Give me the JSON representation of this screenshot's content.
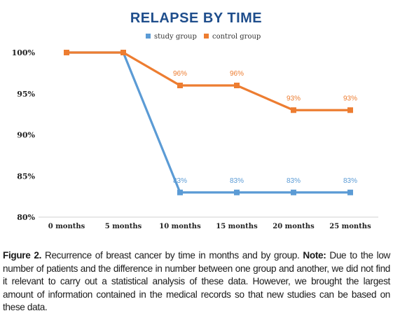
{
  "chart_data": {
    "type": "line",
    "title": "RELAPSE BY TIME",
    "categories": [
      "0 months",
      "5 months",
      "10 months",
      "15 months",
      "20 months",
      "25 months"
    ],
    "ylim": [
      80,
      100
    ],
    "yticks": [
      "80%",
      "85%",
      "90%",
      "95%",
      "100%"
    ],
    "grid": false,
    "legend": "top",
    "series": [
      {
        "name": "study group",
        "color": "#5b9bd5",
        "values": [
          100,
          100,
          83,
          83,
          83,
          83
        ],
        "labels": [
          "",
          "",
          "83%",
          "83%",
          "83%",
          "83%"
        ]
      },
      {
        "name": "control group",
        "color": "#ed7d31",
        "values": [
          100,
          100,
          96,
          96,
          93,
          93
        ],
        "labels": [
          "",
          "",
          "96%",
          "96%",
          "93%",
          "93%"
        ]
      }
    ]
  },
  "caption": {
    "label": "Figure 2.",
    "text1": " Recurrence of breast cancer by time in months and by group. ",
    "note_label": "Note:",
    "text2": " Due to the low number of patients and the difference in number between one group and another, we did not find it relevant to carry out a statistical analysis of these data. However, we brought the largest amount of information contained in the medical records so that new studies can be based on these data."
  }
}
